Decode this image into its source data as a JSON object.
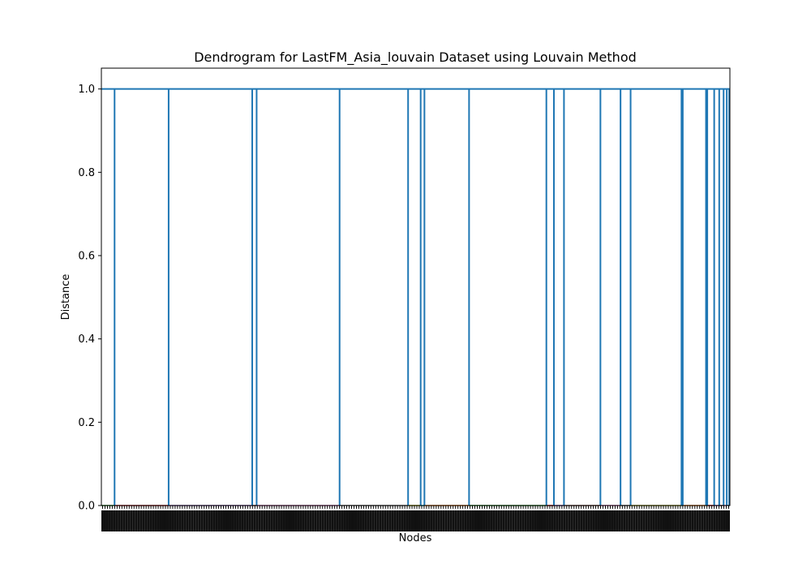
{
  "chart_data": {
    "type": "dendrogram",
    "title": "Dendrogram for LastFM_Asia_louvain Dataset using Louvain Method",
    "xlabel": "Nodes",
    "ylabel": "Distance",
    "ylim": [
      0,
      1.05
    ],
    "yticks": [
      0.0,
      0.2,
      0.4,
      0.6,
      0.8,
      1.0
    ],
    "ytick_labels": [
      "0.0",
      "0.2",
      "0.4",
      "0.6",
      "0.8",
      "1.0"
    ],
    "grid": false,
    "link_color_above_threshold": "#1f77b4",
    "merge_height": 1.0,
    "cluster_boundaries_fraction": [
      0.021,
      0.107,
      0.24,
      0.247,
      0.379,
      0.488,
      0.508,
      0.514,
      0.585,
      0.708,
      0.72,
      0.736,
      0.794,
      0.826,
      0.842,
      0.923,
      0.925,
      0.962,
      0.964,
      0.975,
      0.983,
      0.99,
      0.995,
      0.999
    ],
    "leaf_cluster_colors": [
      "#2ca02c",
      "#d62728",
      "#9467bd",
      "#8c564b",
      "#e377c2",
      "#7f7f7f",
      "#bcbd22",
      "#17becf",
      "#ff7f0e"
    ]
  }
}
